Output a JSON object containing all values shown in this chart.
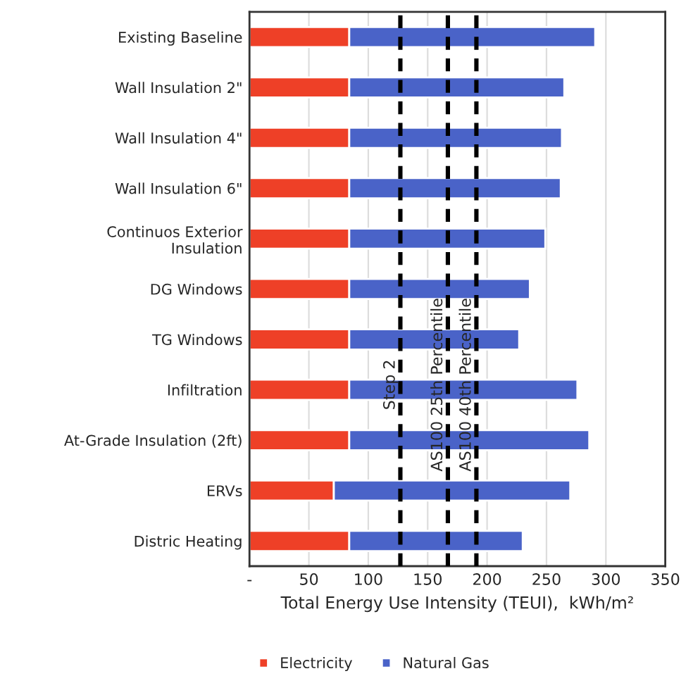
{
  "chart_data": {
    "type": "bar",
    "orientation": "horizontal",
    "stacked": true,
    "categories": [
      "Existing Baseline",
      "Wall Insulation 2\"",
      "Wall Insulation 4\"",
      "Wall Insulation 6\"",
      "Continuos Exterior\nInsulation",
      "DG Windows",
      "TG Windows",
      "Infiltration",
      "At-Grade Insulation (2ft)",
      "ERVs",
      "Distric Heating"
    ],
    "series": [
      {
        "name": "Electricity",
        "color": "#ee4027",
        "values": [
          84,
          84,
          84,
          84,
          84,
          84,
          84,
          84,
          84,
          71,
          84
        ]
      },
      {
        "name": "Natural Gas",
        "color": "#4a63c8",
        "values": [
          207,
          181,
          179,
          178,
          165,
          152,
          143,
          192,
          202,
          199,
          146
        ]
      }
    ],
    "xlabel": "Total Energy Use Intensity (TEUI),  kWh/m²",
    "xlim": [
      0,
      350
    ],
    "xticks": [
      {
        "value": 0,
        "label": "-"
      },
      50,
      100,
      150,
      200,
      250,
      300,
      350
    ],
    "ref_lines": [
      {
        "axis": "x",
        "value": 127,
        "label": "Step 2",
        "color": "#000000",
        "line_style": "dashed"
      },
      {
        "axis": "x",
        "value": 167,
        "label": "AS100 25th Percentile",
        "color": "#000000",
        "line_style": "dashed"
      },
      {
        "axis": "x",
        "value": 191,
        "label": "AS100 40th Percentile",
        "color": "#000000",
        "line_style": "dashed"
      }
    ],
    "grid": "x",
    "legend": "bottom"
  }
}
